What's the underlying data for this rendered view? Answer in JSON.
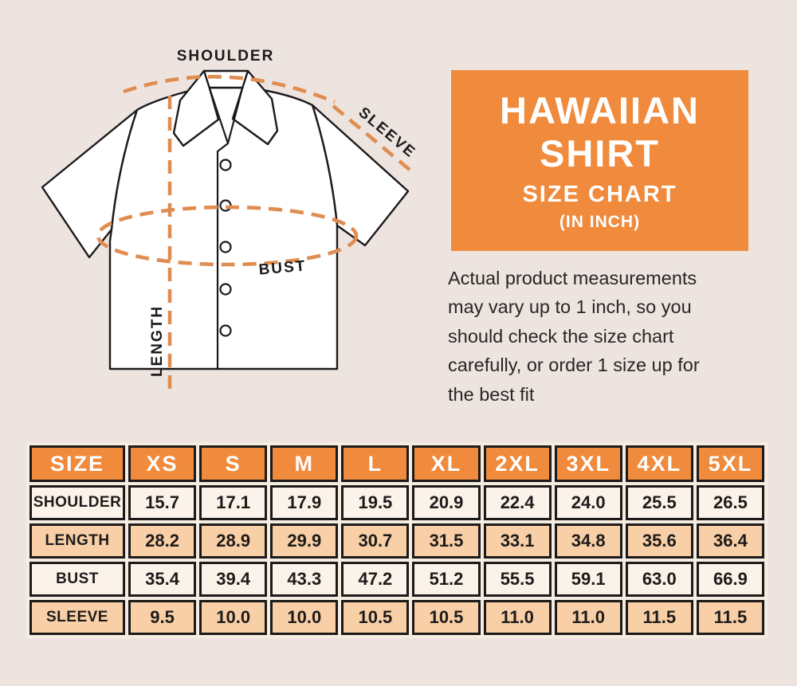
{
  "title_box": {
    "line1": "HAWAIIAN",
    "line2": "SHIRT",
    "line3": "SIZE CHART",
    "line4": "(IN INCH)"
  },
  "description": {
    "full_text": "Actual product measurements may vary up to 1 inch, so you should check the size chart carefully, or order 1 size up for the best fit",
    "lines": [
      "Actual product measurements",
      "may vary up to 1 inch, so you",
      "should check the size chart",
      "carefully, or order 1 size up for",
      "the best fit"
    ]
  },
  "diagram": {
    "shoulder_label": "SHOULDER",
    "sleeve_label": "SLEEVE",
    "bust_label": "BUST",
    "length_label": "LENGTH"
  },
  "colors": {
    "background": "#EDE4E0",
    "accent_orange": "#F08A3C",
    "dash_orange": "#E08D52",
    "row_light": "#FBF2E9",
    "row_peach": "#F8CFA6",
    "cell_gap_cream": "#F6EDE2",
    "border_black": "#1D1B1A",
    "text_white": "#FFFFFF",
    "text_dark": "#2B2425"
  },
  "chart_data": {
    "type": "table",
    "title": "HAWAIIAN SHIRT SIZE CHART (IN INCH)",
    "unit": "inch",
    "columns": [
      "SIZE",
      "XS",
      "S",
      "M",
      "L",
      "XL",
      "2XL",
      "3XL",
      "4XL",
      "5XL"
    ],
    "rows": [
      {
        "label": "SHOULDER",
        "values": [
          "15.7",
          "17.1",
          "17.9",
          "19.5",
          "20.9",
          "22.4",
          "24.0",
          "25.5",
          "26.5"
        ]
      },
      {
        "label": "LENGTH",
        "values": [
          "28.2",
          "28.9",
          "29.9",
          "30.7",
          "31.5",
          "33.1",
          "34.8",
          "35.6",
          "36.4"
        ]
      },
      {
        "label": "BUST",
        "values": [
          "35.4",
          "39.4",
          "43.3",
          "47.2",
          "51.2",
          "55.5",
          "59.1",
          "63.0",
          "66.9"
        ]
      },
      {
        "label": "SLEEVE",
        "values": [
          "9.5",
          "10.0",
          "10.0",
          "10.5",
          "10.5",
          "11.0",
          "11.0",
          "11.5",
          "11.5"
        ]
      }
    ]
  }
}
